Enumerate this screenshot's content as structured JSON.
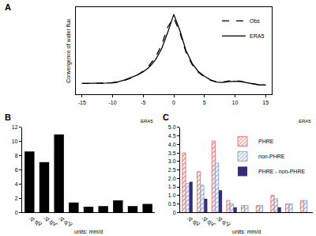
{
  "chart_data": [
    {
      "title": "A",
      "type": "line",
      "x": [
        -15,
        -14,
        -13,
        -12,
        -11,
        -10,
        -9,
        -8,
        -7,
        -6,
        -5,
        -4,
        -3,
        -2,
        -1,
        0,
        1,
        2,
        3,
        4,
        5,
        6,
        7,
        8,
        9,
        10,
        11,
        12,
        13,
        14,
        15
      ],
      "series": [
        {
          "name": "Obs",
          "color": "#000000",
          "line_style": "dash",
          "values": [
            7.0,
            7.0,
            7.0,
            7.1,
            7.1,
            7.2,
            7.4,
            7.9,
            8.5,
            9.3,
            10.4,
            12.0,
            14.2,
            17.5,
            22.5,
            25.0,
            21.0,
            15.5,
            12.2,
            10.1,
            8.8,
            7.9,
            7.4,
            7.4,
            7.7,
            7.8,
            7.6,
            7.2,
            6.9,
            6.6,
            6.6
          ]
        },
        {
          "name": "ERA5",
          "color": "#000000",
          "line_style": "solid",
          "values": [
            7.0,
            7.0,
            7.0,
            7.1,
            7.1,
            7.2,
            7.5,
            8.0,
            8.6,
            9.3,
            10.2,
            11.5,
            13.5,
            16.5,
            21.0,
            26.0,
            21.5,
            16.0,
            12.5,
            10.3,
            9.0,
            8.0,
            7.4,
            7.3,
            7.5,
            7.6,
            7.5,
            7.2,
            6.9,
            6.6,
            6.6
          ]
        }
      ],
      "y_label": "Convergence of water flux",
      "xlim": [
        -16,
        16
      ],
      "xticks": [
        -15,
        -10,
        -5,
        0,
        5,
        10,
        15
      ],
      "ylim": [
        4,
        28
      ],
      "tick_labels": "x",
      "grid": false,
      "legend": "top right"
    },
    {
      "title": "B",
      "type": "bar",
      "categories": [
        "-∇·q̄V̄",
        "-∇·q̄V'",
        "-∇·q'V̄",
        null,
        null,
        null,
        null,
        null,
        null
      ],
      "values": [
        8.6,
        7.1,
        11.0,
        1.4,
        0.8,
        0.9,
        1.7,
        0.9,
        1.2
      ],
      "color": "#000000",
      "ylim": [
        0,
        12
      ],
      "yticks": [
        0,
        2,
        4,
        6,
        8,
        10,
        12
      ],
      "grid": false,
      "annotations": [
        "ERA5",
        "units: mm/d"
      ]
    },
    {
      "title": "C",
      "type": "bar",
      "categories": [
        "-∇·q̄V̄",
        "-∇·q̄V'",
        "-∇·q'V̄",
        null,
        null,
        null,
        null,
        null,
        null
      ],
      "series": [
        {
          "name": "PHRE",
          "color": "#e07a7a",
          "marker": "hatch",
          "values": [
            3.5,
            2.4,
            4.2,
            0.7,
            0.4,
            0.4,
            1.0,
            0.5,
            0.7
          ]
        },
        {
          "name": "non-PHRE",
          "color": "#8fa6d0",
          "marker": "hatch",
          "values": [
            1.7,
            1.6,
            2.9,
            0.5,
            0.4,
            0.4,
            0.8,
            0.5,
            0.7
          ]
        },
        {
          "name": "PHRE - non-PHRE",
          "color": "#3b2a7a",
          "marker": "solid",
          "values": [
            1.8,
            0.8,
            1.3,
            0.3,
            0,
            0,
            0.3,
            0,
            0
          ]
        }
      ],
      "ylim": [
        0,
        5
      ],
      "yticks": [
        0,
        0.5,
        {
          "value": 1,
          "label": "1.0"
        },
        1.5,
        {
          "value": 2,
          "label": "2.0"
        },
        2.5,
        {
          "value": 3,
          "label": "3.0"
        },
        3.5,
        {
          "value": 4,
          "label": "4.0"
        },
        4.5,
        {
          "value": 5,
          "label": "5.0"
        }
      ],
      "grid": false,
      "legend": "top right",
      "annotations": [
        "ERA5",
        "units: mm/d"
      ]
    }
  ]
}
